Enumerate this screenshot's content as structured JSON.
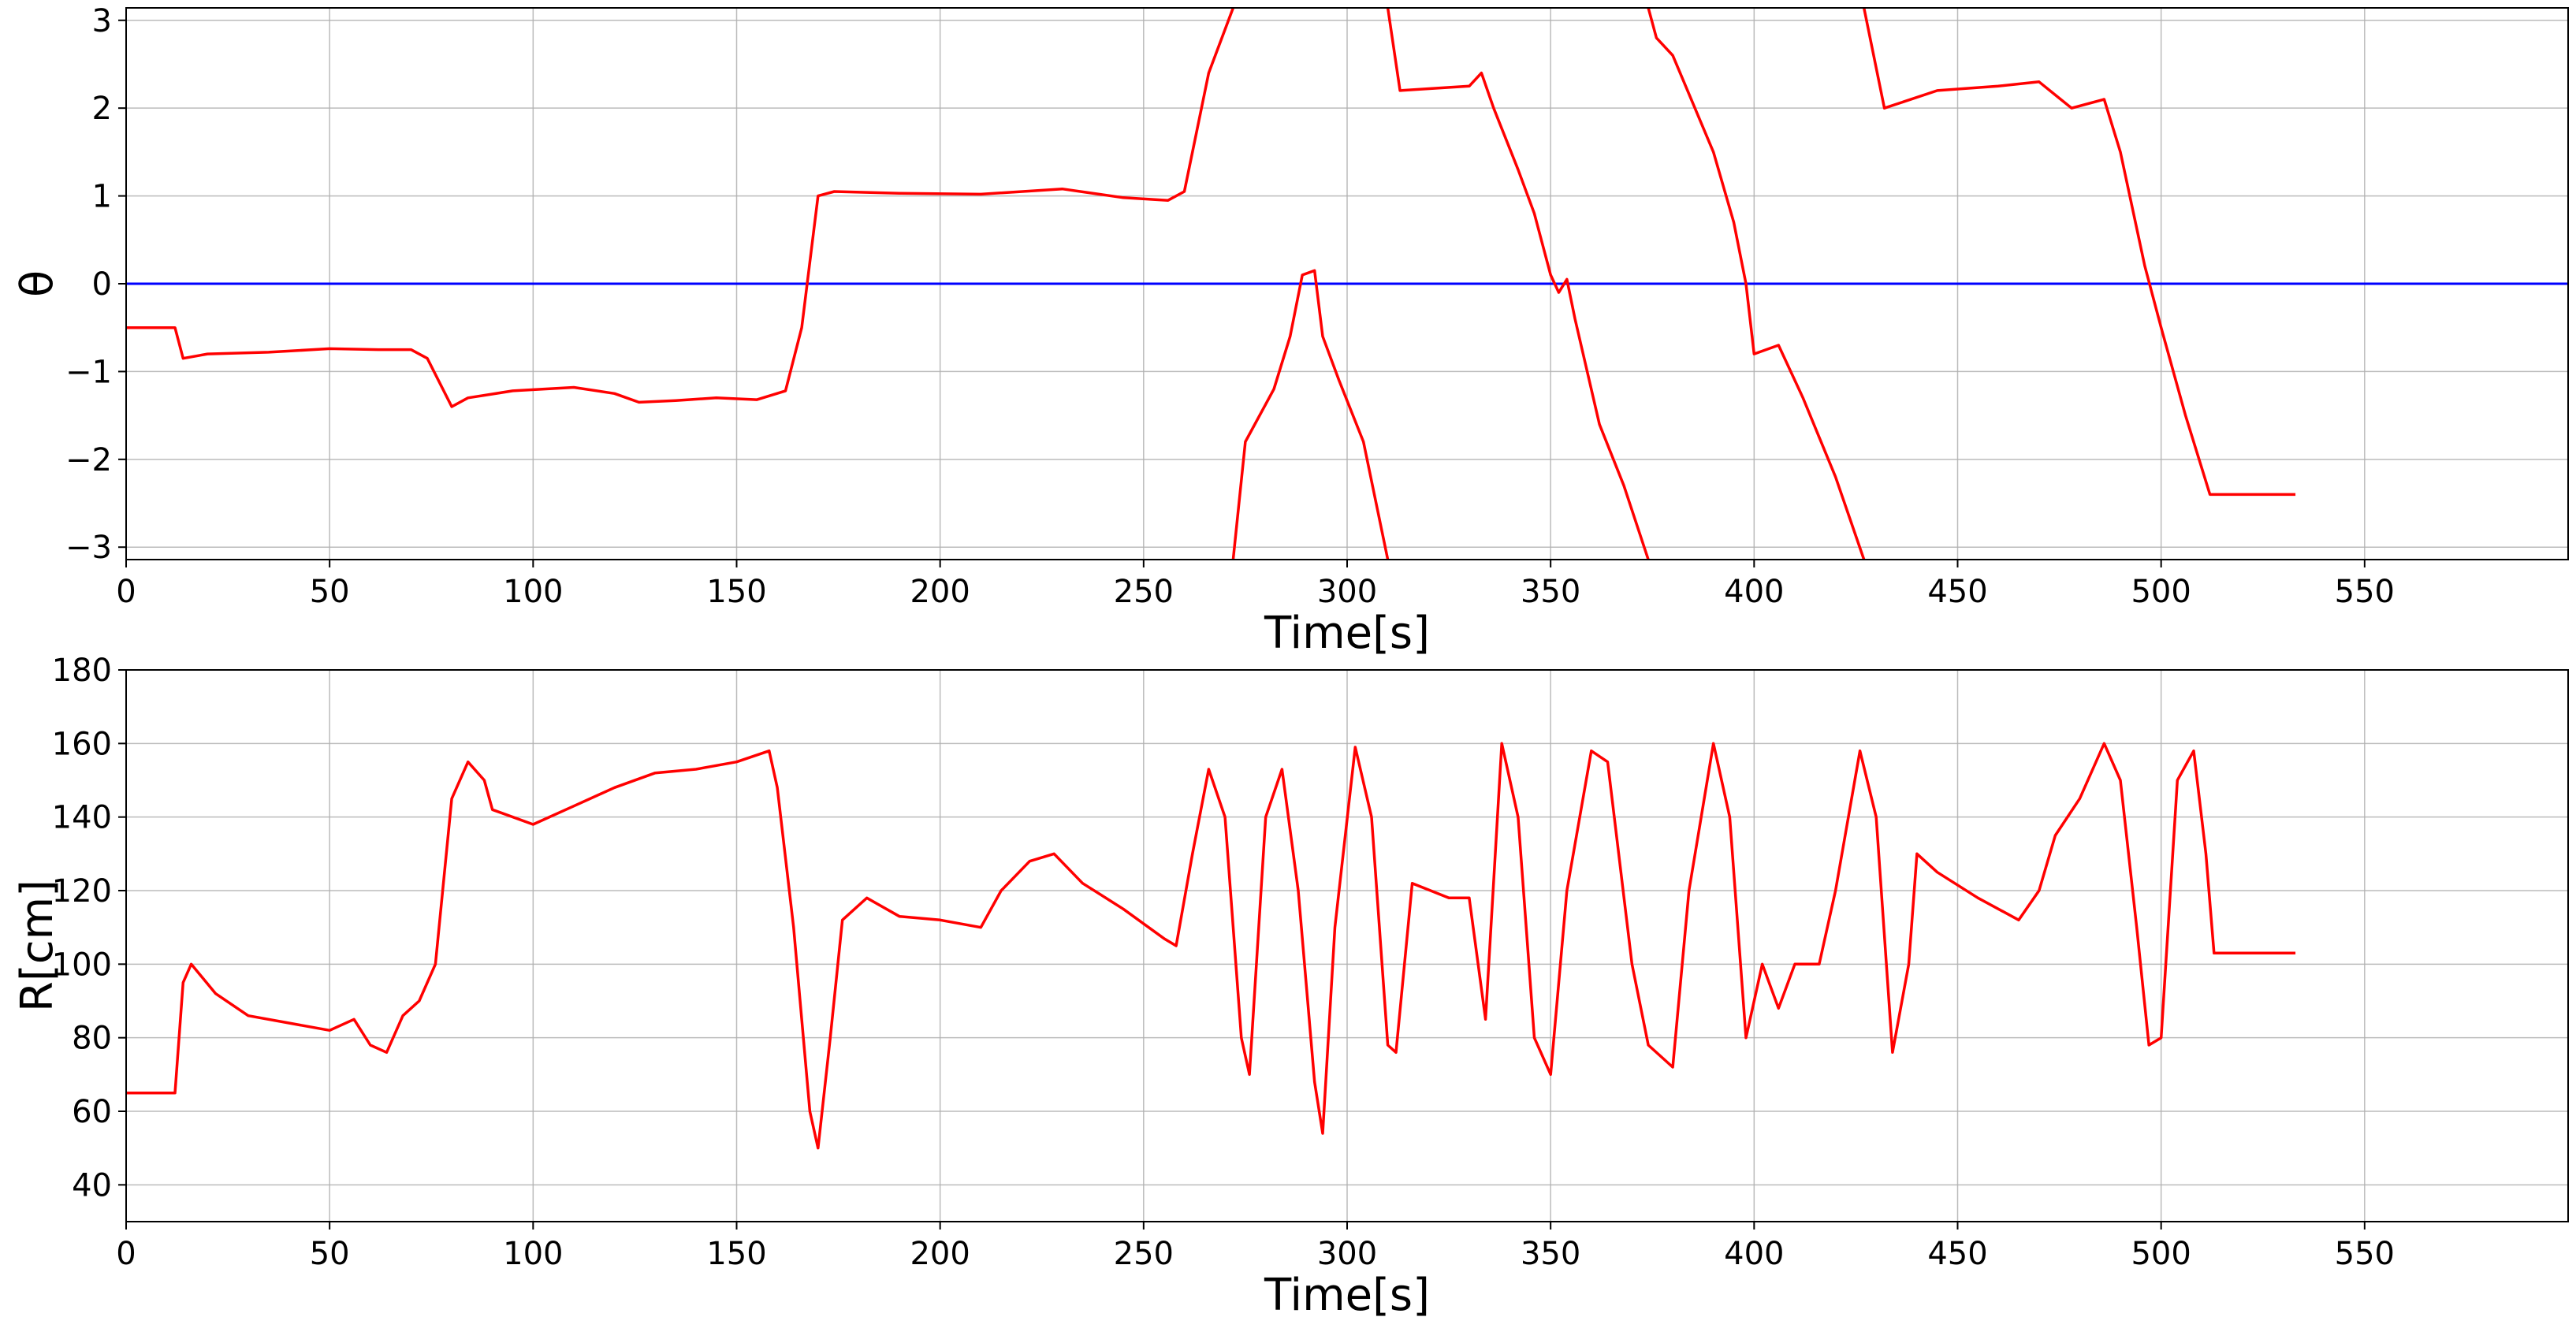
{
  "chart_data": [
    {
      "type": "line",
      "xlabel": "Time[s]",
      "ylabel": "θ",
      "xlim": [
        0,
        600
      ],
      "ylim": [
        -3.1416,
        3.1416
      ],
      "xticks": [
        0,
        50,
        100,
        150,
        200,
        250,
        300,
        350,
        400,
        450,
        500,
        550
      ],
      "yticks": [
        -3,
        -2,
        -1,
        0,
        1,
        2,
        3
      ],
      "ytick_labels": [
        "−3",
        "−2",
        "−1",
        "0",
        "1",
        "2",
        "3"
      ],
      "grid": true,
      "colors": {
        "series": "#ff0000",
        "reference": "#0000ff"
      },
      "reference_line": {
        "y": 0
      },
      "series": [
        {
          "segments": [
            [
              [
                0,
                -0.5
              ],
              [
                12,
                -0.5
              ],
              [
                14,
                -0.85
              ],
              [
                20,
                -0.8
              ],
              [
                35,
                -0.78
              ],
              [
                50,
                -0.74
              ],
              [
                62,
                -0.75
              ],
              [
                70,
                -0.75
              ],
              [
                74,
                -0.85
              ],
              [
                80,
                -1.4
              ],
              [
                84,
                -1.3
              ],
              [
                95,
                -1.22
              ],
              [
                110,
                -1.18
              ],
              [
                120,
                -1.25
              ],
              [
                126,
                -1.35
              ],
              [
                135,
                -1.33
              ],
              [
                145,
                -1.3
              ],
              [
                155,
                -1.32
              ],
              [
                162,
                -1.22
              ],
              [
                166,
                -0.5
              ],
              [
                170,
                1.0
              ],
              [
                174,
                1.05
              ],
              [
                190,
                1.03
              ],
              [
                210,
                1.02
              ],
              [
                230,
                1.08
              ],
              [
                245,
                0.98
              ],
              [
                256,
                0.95
              ],
              [
                260,
                1.05
              ],
              [
                262,
                1.5
              ],
              [
                266,
                2.4
              ],
              [
                272,
                3.1416
              ]
            ],
            [
              [
                272,
                -3.1416
              ],
              [
                275,
                -1.8
              ],
              [
                282,
                -1.2
              ],
              [
                286,
                -0.6
              ],
              [
                289,
                0.1
              ],
              [
                292,
                0.15
              ],
              [
                294,
                -0.6
              ],
              [
                298,
                -1.1
              ],
              [
                304,
                -1.8
              ],
              [
                310,
                -3.1416
              ]
            ],
            [
              [
                310,
                3.1416
              ],
              [
                313,
                2.2
              ],
              [
                330,
                2.25
              ],
              [
                333,
                2.4
              ],
              [
                336,
                2.0
              ],
              [
                342,
                1.3
              ],
              [
                346,
                0.8
              ],
              [
                350,
                0.1
              ],
              [
                352,
                -0.1
              ],
              [
                354,
                0.05
              ],
              [
                356,
                -0.4
              ],
              [
                362,
                -1.6
              ],
              [
                368,
                -2.3
              ],
              [
                374,
                -3.1416
              ]
            ],
            [
              [
                374,
                3.1416
              ],
              [
                376,
                2.8
              ],
              [
                380,
                2.6
              ],
              [
                390,
                1.5
              ],
              [
                395,
                0.7
              ],
              [
                398,
                0.0
              ],
              [
                400,
                -0.8
              ],
              [
                406,
                -0.7
              ],
              [
                412,
                -1.3
              ],
              [
                420,
                -2.2
              ],
              [
                427,
                -3.1416
              ]
            ],
            [
              [
                427,
                3.1416
              ],
              [
                432,
                2.0
              ],
              [
                445,
                2.2
              ],
              [
                460,
                2.25
              ],
              [
                470,
                2.3
              ],
              [
                478,
                2.0
              ],
              [
                486,
                2.1
              ],
              [
                490,
                1.5
              ],
              [
                496,
                0.2
              ],
              [
                500,
                -0.5
              ],
              [
                506,
                -1.5
              ],
              [
                512,
                -2.4
              ],
              [
                533,
                -2.4
              ]
            ]
          ]
        }
      ]
    },
    {
      "type": "line",
      "xlabel": "Time[s]",
      "ylabel": "R[cm]",
      "xlim": [
        0,
        600
      ],
      "ylim": [
        30,
        180
      ],
      "xticks": [
        0,
        50,
        100,
        150,
        200,
        250,
        300,
        350,
        400,
        450,
        500,
        550
      ],
      "yticks": [
        40,
        60,
        80,
        100,
        120,
        140,
        160,
        180
      ],
      "grid": true,
      "colors": {
        "series": "#ff0000"
      },
      "series": [
        {
          "segments": [
            [
              [
                0,
                65
              ],
              [
                12,
                65
              ],
              [
                14,
                95
              ],
              [
                16,
                100
              ],
              [
                22,
                92
              ],
              [
                30,
                86
              ],
              [
                40,
                84
              ],
              [
                50,
                82
              ],
              [
                56,
                85
              ],
              [
                60,
                78
              ],
              [
                64,
                76
              ],
              [
                68,
                86
              ],
              [
                72,
                90
              ],
              [
                76,
                100
              ],
              [
                80,
                145
              ],
              [
                84,
                155
              ],
              [
                88,
                150
              ],
              [
                90,
                142
              ],
              [
                100,
                138
              ],
              [
                110,
                143
              ],
              [
                120,
                148
              ],
              [
                130,
                152
              ],
              [
                140,
                153
              ],
              [
                150,
                155
              ],
              [
                158,
                158
              ],
              [
                160,
                148
              ],
              [
                164,
                110
              ],
              [
                168,
                60
              ],
              [
                170,
                50
              ],
              [
                173,
                80
              ],
              [
                176,
                112
              ],
              [
                182,
                118
              ],
              [
                190,
                113
              ],
              [
                200,
                112
              ],
              [
                210,
                110
              ],
              [
                215,
                120
              ],
              [
                222,
                128
              ],
              [
                228,
                130
              ],
              [
                235,
                122
              ],
              [
                245,
                115
              ],
              [
                255,
                107
              ],
              [
                258,
                105
              ],
              [
                262,
                130
              ],
              [
                266,
                153
              ],
              [
                270,
                140
              ],
              [
                274,
                80
              ],
              [
                276,
                70
              ],
              [
                280,
                140
              ],
              [
                284,
                153
              ],
              [
                288,
                120
              ],
              [
                292,
                68
              ],
              [
                294,
                54
              ],
              [
                297,
                110
              ],
              [
                302,
                159
              ],
              [
                306,
                140
              ],
              [
                310,
                78
              ],
              [
                312,
                76
              ],
              [
                316,
                122
              ],
              [
                325,
                118
              ],
              [
                330,
                118
              ],
              [
                334,
                85
              ],
              [
                338,
                160
              ],
              [
                342,
                140
              ],
              [
                346,
                80
              ],
              [
                350,
                70
              ],
              [
                354,
                120
              ],
              [
                360,
                158
              ],
              [
                364,
                155
              ],
              [
                370,
                100
              ],
              [
                374,
                78
              ],
              [
                380,
                72
              ],
              [
                384,
                120
              ],
              [
                390,
                160
              ],
              [
                394,
                140
              ],
              [
                398,
                80
              ],
              [
                402,
                100
              ],
              [
                406,
                88
              ],
              [
                410,
                100
              ],
              [
                416,
                100
              ],
              [
                420,
                120
              ],
              [
                426,
                158
              ],
              [
                430,
                140
              ],
              [
                434,
                76
              ],
              [
                438,
                100
              ],
              [
                440,
                130
              ],
              [
                445,
                125
              ],
              [
                455,
                118
              ],
              [
                465,
                112
              ],
              [
                470,
                120
              ],
              [
                474,
                135
              ],
              [
                480,
                145
              ],
              [
                486,
                160
              ],
              [
                490,
                150
              ],
              [
                494,
                110
              ],
              [
                497,
                78
              ],
              [
                500,
                80
              ],
              [
                504,
                150
              ],
              [
                508,
                158
              ],
              [
                511,
                130
              ],
              [
                513,
                103
              ],
              [
                533,
                103
              ]
            ]
          ]
        }
      ]
    }
  ]
}
